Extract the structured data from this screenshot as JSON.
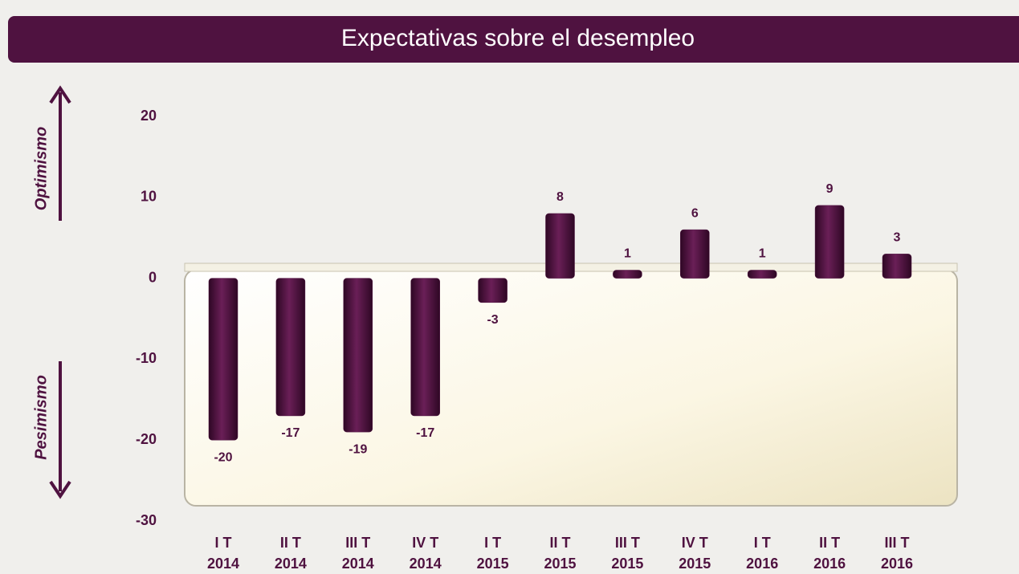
{
  "chart_data": {
    "type": "bar",
    "title": "Expectativas sobre el desempleo",
    "annotations": [
      "Optimismo",
      "Pesimismo"
    ],
    "categories": [
      [
        "I T",
        "2014"
      ],
      [
        "II T",
        "2014"
      ],
      [
        "III T",
        "2014"
      ],
      [
        "IV T",
        "2014"
      ],
      [
        "I T",
        "2015"
      ],
      [
        "II T",
        "2015"
      ],
      [
        "III T",
        "2015"
      ],
      [
        "IV T",
        "2015"
      ],
      [
        "I T",
        "2016"
      ],
      [
        "II T",
        "2016"
      ],
      [
        "III T",
        "2016"
      ]
    ],
    "values": [
      -20,
      -17,
      -19,
      -17,
      -3,
      8,
      1,
      6,
      1,
      9,
      3
    ],
    "color": "#4f1240",
    "ylim": [
      -30,
      20
    ],
    "yticks": [
      -30,
      -20,
      -10,
      0,
      10,
      20
    ],
    "grid": false
  }
}
